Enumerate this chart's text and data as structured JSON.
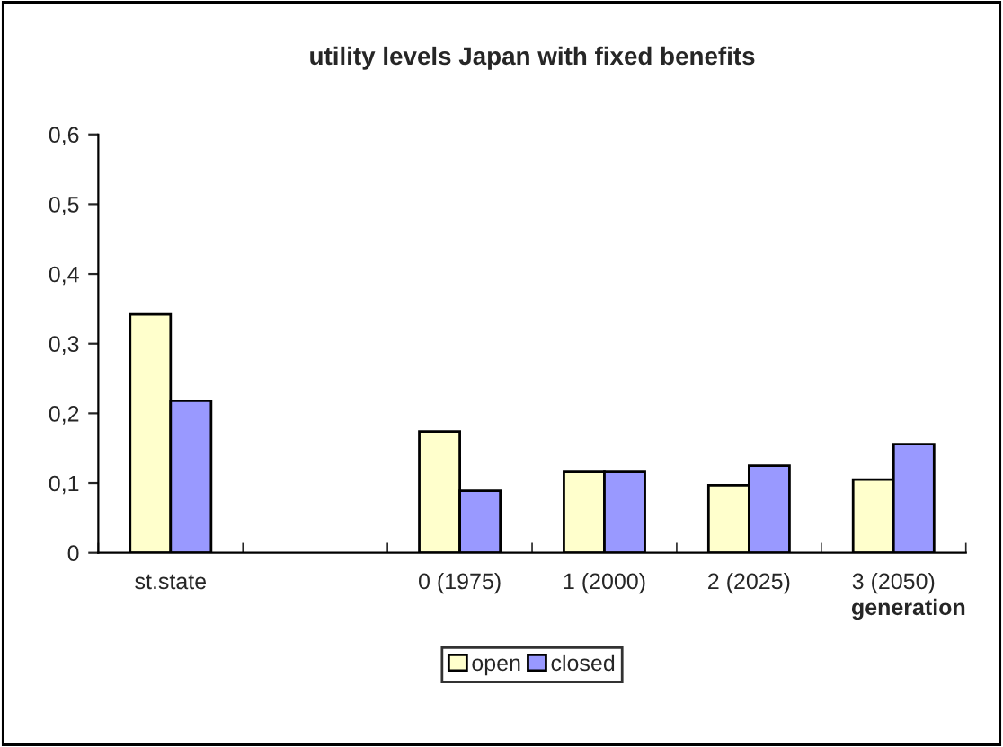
{
  "chart_data": {
    "type": "bar",
    "title": "utility levels Japan with fixed benefits",
    "xlabel": "generation",
    "categories": [
      "st.state",
      null,
      "0 (1975)",
      "1 (2000)",
      "2 (2025)",
      "3 (2050)"
    ],
    "series": [
      {
        "name": "open",
        "color": "#ffffcc",
        "values": [
          0.342,
          null,
          0.174,
          0.116,
          0.097,
          0.105
        ]
      },
      {
        "name": "closed",
        "color": "#9999ff",
        "values": [
          0.218,
          null,
          0.089,
          0.116,
          0.125,
          0.156
        ]
      }
    ],
    "ylim": [
      0,
      0.6
    ],
    "yticks": [
      {
        "value": 0,
        "label": "0"
      },
      {
        "value": 0.1,
        "label": "0,1"
      },
      {
        "value": 0.2,
        "label": "0,2"
      },
      {
        "value": 0.3,
        "label": "0,3"
      },
      {
        "value": 0.4,
        "label": "0,4"
      },
      {
        "value": 0.5,
        "label": "0,5"
      },
      {
        "value": 0.6,
        "label": "0,6"
      }
    ],
    "grid": false,
    "legend": "bottom"
  }
}
